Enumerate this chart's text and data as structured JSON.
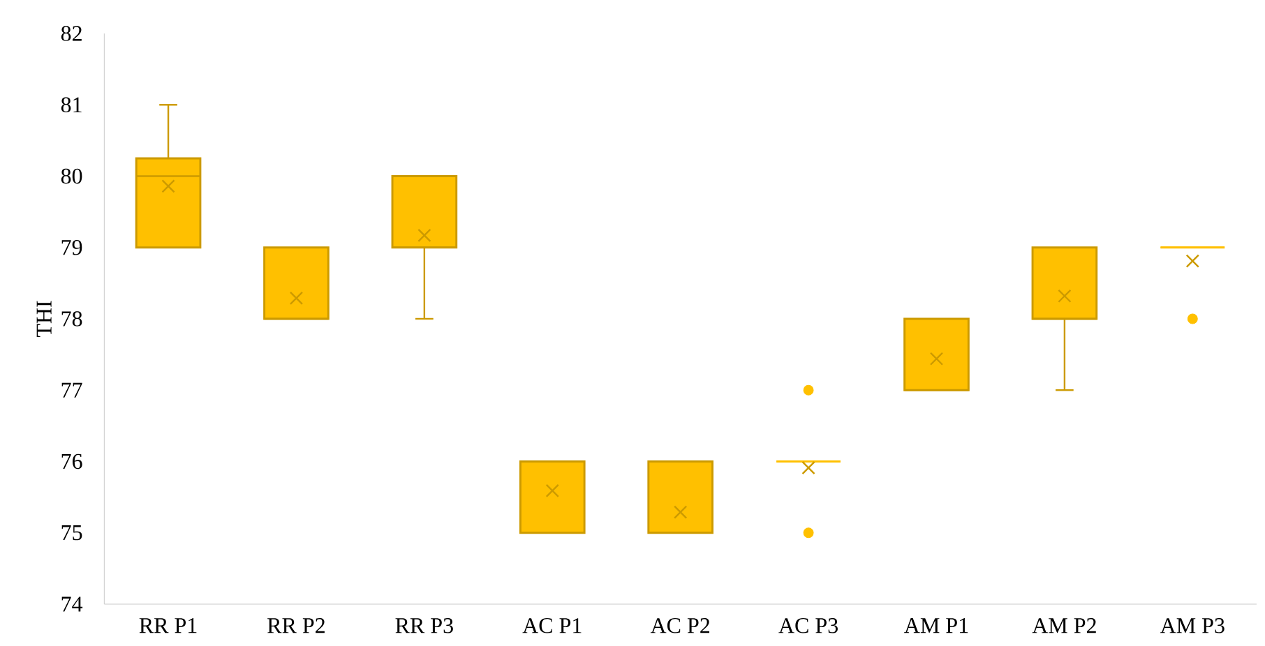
{
  "chart_data": {
    "type": "box",
    "ylabel": "THI",
    "color": "#ffc000",
    "categories": [
      "RR P1",
      "RR P2",
      "RR P3",
      "AC P1",
      "AC P2",
      "AC P3",
      "AM P1",
      "AM P2",
      "AM P3"
    ],
    "boxes": [
      {
        "low": 79,
        "q1": 79,
        "median": 80,
        "q3": 80.25,
        "high": 81,
        "mean": 79.86
      },
      {
        "low": 78,
        "q1": 78,
        "median": 78,
        "q3": 79,
        "high": 79,
        "mean": 78.29
      },
      {
        "low": 78,
        "q1": 79,
        "median": 79,
        "q3": 80,
        "high": 80,
        "mean": 79.17
      },
      {
        "low": 75,
        "q1": 75,
        "median": 76,
        "q3": 76,
        "high": 76,
        "mean": 75.59
      },
      {
        "low": 75,
        "q1": 75,
        "median": 75,
        "q3": 76,
        "high": 76,
        "mean": 75.29
      },
      {
        "low": 76,
        "q1": 76,
        "median": 76,
        "q3": 76,
        "high": 76,
        "mean": 75.91,
        "outliers": [
          77,
          75
        ]
      },
      {
        "low": 77,
        "q1": 77,
        "median": 77,
        "q3": 78,
        "high": 78,
        "mean": 77.44
      },
      {
        "low": 77,
        "q1": 78,
        "median": 78,
        "q3": 79,
        "high": 79,
        "mean": 78.32
      },
      {
        "low": 79,
        "q1": 79,
        "median": 79,
        "q3": 79,
        "high": 79,
        "mean": 78.81,
        "outliers": [
          78
        ]
      }
    ],
    "ylim": [
      74,
      82
    ],
    "yticks": [
      74,
      75,
      76,
      77,
      78,
      79,
      80,
      81,
      82
    ]
  }
}
